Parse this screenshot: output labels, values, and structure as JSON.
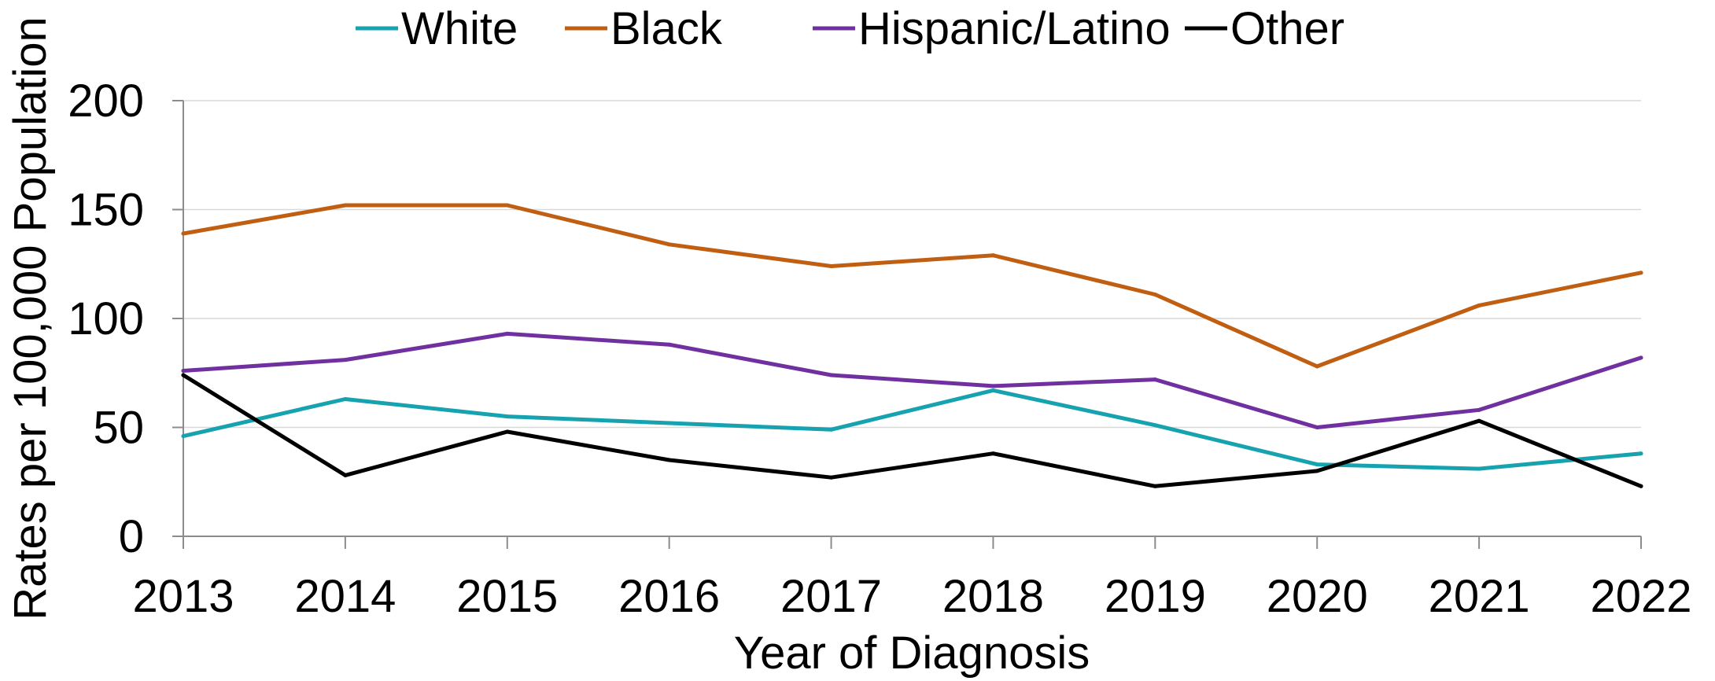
{
  "chart_data": {
    "type": "line",
    "title": "",
    "xlabel": "Year of Diagnosis",
    "ylabel": "Rates per 100,000 Population",
    "ylim": [
      0,
      200
    ],
    "yticks": [
      0,
      50,
      100,
      150,
      200
    ],
    "grid": "horizontal",
    "legend_position": "top",
    "categories": [
      "2013",
      "2014",
      "2015",
      "2016",
      "2017",
      "2018",
      "2019",
      "2020",
      "2021",
      "2022"
    ],
    "series": [
      {
        "name": "White",
        "color": "#17A2B0",
        "values": [
          46,
          63,
          55,
          52,
          49,
          67,
          51,
          33,
          31,
          38
        ]
      },
      {
        "name": "Black",
        "color": "#C05E12",
        "values": [
          139,
          152,
          152,
          134,
          124,
          129,
          111,
          78,
          106,
          121
        ]
      },
      {
        "name": "Hispanic/Latino",
        "color": "#7030A0",
        "values": [
          76,
          81,
          93,
          88,
          74,
          69,
          72,
          50,
          58,
          82
        ]
      },
      {
        "name": "Other",
        "color": "#000000",
        "values": [
          74,
          28,
          48,
          35,
          27,
          38,
          23,
          30,
          53,
          23
        ]
      }
    ]
  }
}
